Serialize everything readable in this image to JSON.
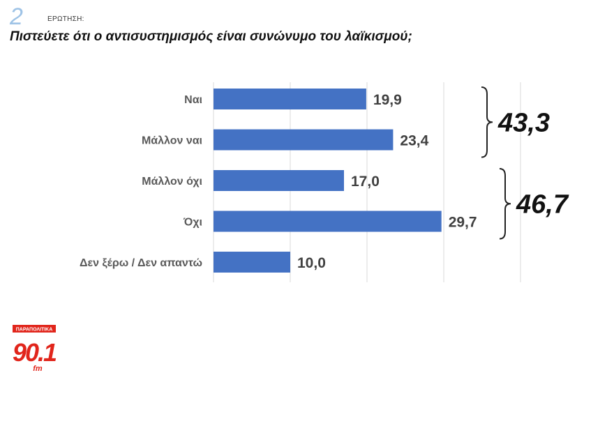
{
  "question": {
    "number": "2",
    "label": "ΕΡΩΤΗΣΗ:",
    "text": "Πιστεύετε ότι ο αντισυστημισμός είναι συνώνυμο του λαϊκισμού;"
  },
  "chart_data": {
    "type": "bar",
    "orientation": "horizontal",
    "categories": [
      "Ναι",
      "Μάλλον ναι",
      "Μάλλον όχι",
      "Όχι",
      "Δεν ξέρω / Δεν απαντώ"
    ],
    "values": [
      19.9,
      23.4,
      17.0,
      29.7,
      10.0
    ],
    "value_labels": [
      "19,9",
      "23,4",
      "17,0",
      "29,7",
      "10,0"
    ],
    "xlim": [
      0,
      40
    ],
    "grid": true,
    "bar_color": "#4472c4",
    "groups": [
      {
        "members": [
          0,
          1
        ],
        "total_label": "43,3"
      },
      {
        "members": [
          2,
          3
        ],
        "total_label": "46,7"
      }
    ]
  },
  "logo": {
    "text": "ΠΑΡΑΠΟΛΙΤΙΚΑ",
    "number": "90.1",
    "suffix": "fm",
    "color": "#e1251b"
  }
}
